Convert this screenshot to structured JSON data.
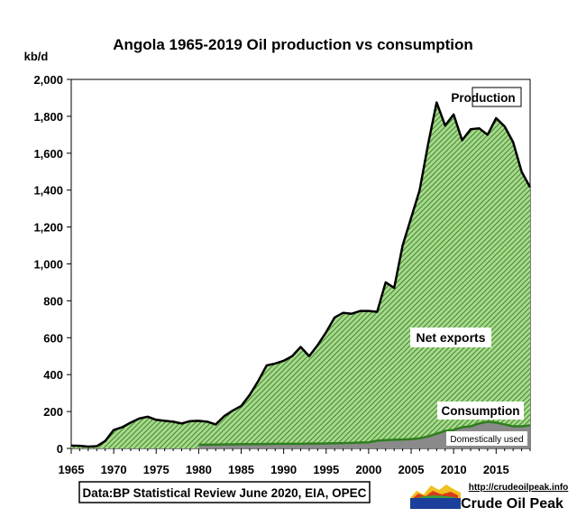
{
  "title": "Angola 1965-2019 Oil production  vs consumption",
  "ylabel": "kb/d",
  "source": "Data:BP Statistical Review June 2020, EIA, OPEC",
  "logo": {
    "url": "http://crudeoilpeak.info",
    "name": "Crude Oil Peak"
  },
  "annotations": {
    "production": "Production",
    "net_exports": "Net exports",
    "consumption": "Consumption",
    "domestic": "Domestically used"
  },
  "colors": {
    "production_line": "#000000",
    "net_exports_fill": "#5aa02c",
    "consumption_line": "#2e7d1e",
    "domestic_fill": "#8a8a8a",
    "net_exports_text": "#1a8a1a"
  },
  "chart_data": {
    "type": "area",
    "title": "Angola 1965-2019 Oil production  vs consumption",
    "ylabel": "kb/d",
    "xlabel": "",
    "xlim": [
      1965,
      2019
    ],
    "ylim": [
      0,
      2000
    ],
    "grid": false,
    "x_ticks": [
      1965,
      1970,
      1975,
      1980,
      1985,
      1990,
      1995,
      2000,
      2005,
      2010,
      2015
    ],
    "y_ticks": [
      0,
      200,
      400,
      600,
      800,
      1000,
      1200,
      1400,
      1600,
      1800,
      2000
    ],
    "y_tick_labels": [
      "0",
      "200",
      "400",
      "600",
      "800",
      "1,000",
      "1,200",
      "1,400",
      "1,600",
      "1,800",
      "2,000"
    ],
    "series": [
      {
        "name": "Production",
        "x": [
          1965,
          1966,
          1967,
          1968,
          1969,
          1970,
          1971,
          1972,
          1973,
          1974,
          1975,
          1976,
          1977,
          1978,
          1979,
          1980,
          1981,
          1982,
          1983,
          1984,
          1985,
          1986,
          1987,
          1988,
          1989,
          1990,
          1991,
          1992,
          1993,
          1994,
          1995,
          1996,
          1997,
          1998,
          1999,
          2000,
          2001,
          2002,
          2003,
          2004,
          2005,
          2006,
          2007,
          2008,
          2009,
          2010,
          2011,
          2012,
          2013,
          2014,
          2015,
          2016,
          2017,
          2018,
          2019
        ],
        "values": [
          15,
          14,
          10,
          12,
          40,
          100,
          115,
          140,
          162,
          172,
          155,
          150,
          145,
          135,
          148,
          150,
          145,
          130,
          175,
          205,
          230,
          290,
          365,
          450,
          460,
          475,
          500,
          550,
          500,
          560,
          630,
          710,
          735,
          730,
          745,
          745,
          740,
          900,
          870,
          1100,
          1250,
          1400,
          1650,
          1875,
          1750,
          1810,
          1670,
          1730,
          1735,
          1700,
          1790,
          1745,
          1660,
          1500,
          1415
        ]
      },
      {
        "name": "Consumption",
        "x": [
          1980,
          1981,
          1982,
          1983,
          1984,
          1985,
          1986,
          1987,
          1988,
          1989,
          1990,
          1991,
          1992,
          1993,
          1994,
          1995,
          1996,
          1997,
          1998,
          1999,
          2000,
          2001,
          2002,
          2003,
          2004,
          2005,
          2006,
          2007,
          2008,
          2009,
          2010,
          2011,
          2012,
          2013,
          2014,
          2015,
          2016,
          2017,
          2018,
          2019
        ],
        "values": [
          20,
          20,
          21,
          22,
          22,
          23,
          23,
          24,
          24,
          25,
          25,
          25,
          25,
          26,
          26,
          27,
          28,
          29,
          30,
          32,
          33,
          42,
          45,
          47,
          48,
          50,
          55,
          65,
          80,
          95,
          100,
          115,
          120,
          135,
          145,
          140,
          130,
          120,
          120,
          125
        ]
      }
    ]
  }
}
